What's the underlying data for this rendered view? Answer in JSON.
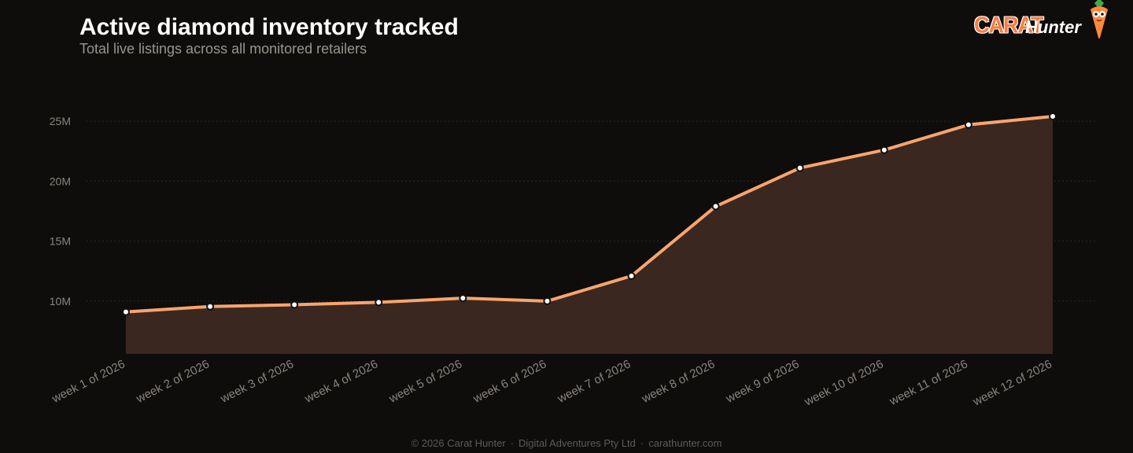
{
  "header": {
    "title": "Active diamond inventory tracked",
    "subtitle": "Total live listings across all monitored retailers"
  },
  "brand": {
    "part1": "CARAT",
    "part2": "Hunter",
    "mascot_icon": "carrot-mascot-icon"
  },
  "footer": {
    "copyright": "© 2026 Carat Hunter",
    "company": "Digital Adventures Pty Ltd",
    "site": "carathunter.com",
    "separator": "·"
  },
  "colors": {
    "background": "#0e0d0c",
    "line": "#f9a46f",
    "area": "#3a2820",
    "grid": "#2a2724",
    "tick_text": "#8a847e",
    "brand_orange": "#ff7a3c"
  },
  "chart_data": {
    "type": "area",
    "title": "Active diamond inventory tracked",
    "subtitle": "Total live listings across all monitored retailers",
    "xlabel": "",
    "ylabel": "",
    "categories": [
      "week 1 of 2026",
      "week 2 of 2026",
      "week 3 of 2026",
      "week 4 of 2026",
      "week 5 of 2026",
      "week 6 of 2026",
      "week 7 of 2026",
      "week 8 of 2026",
      "week 9 of 2026",
      "week 10 of 2026",
      "week 11 of 2026",
      "week 12 of 2026"
    ],
    "values": [
      9100000,
      9550000,
      9700000,
      9900000,
      10250000,
      10000000,
      12100000,
      17900000,
      21100000,
      22600000,
      24700000,
      25400000
    ],
    "yticks": [
      10000000,
      15000000,
      20000000,
      25000000
    ],
    "ytick_labels": [
      "10M",
      "15M",
      "20M",
      "25M"
    ],
    "ylim": [
      5600000,
      25400000
    ],
    "grid": true,
    "legend": "none"
  }
}
